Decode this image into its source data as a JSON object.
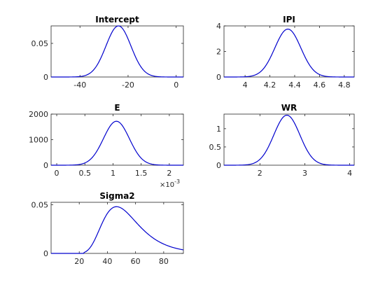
{
  "chart_data": [
    {
      "type": "line",
      "title": "Intercept",
      "xlim": [
        -52,
        3
      ],
      "ylim": [
        0,
        0.076
      ],
      "xticks": [
        -40,
        -20,
        0
      ],
      "yticks": [
        0,
        0.05
      ],
      "xtick_labels": [
        "-40",
        "-20",
        "0"
      ],
      "ytick_labels": [
        "0",
        "0.05"
      ],
      "series": [
        {
          "color": "#0000CD",
          "distribution": "normal",
          "mean": -24.0,
          "std": 5.2,
          "peak": 0.076
        }
      ]
    },
    {
      "type": "line",
      "title": "IPI",
      "xlim": [
        3.83,
        4.88
      ],
      "ylim": [
        0,
        4
      ],
      "xticks": [
        4,
        4.2,
        4.4,
        4.6,
        4.8
      ],
      "yticks": [
        0,
        2,
        4
      ],
      "xtick_labels": [
        "4",
        "4.2",
        "4.4",
        "4.6",
        "4.8"
      ],
      "ytick_labels": [
        "0",
        "2",
        "4"
      ],
      "series": [
        {
          "color": "#0000CD",
          "distribution": "normal",
          "mean": 4.345,
          "std": 0.105,
          "peak": 3.75
        }
      ]
    },
    {
      "type": "line",
      "title": "E",
      "xlim": [
        -0.0001,
        0.00225
      ],
      "ylim": [
        0,
        2000
      ],
      "xticks": [
        0,
        0.0005,
        0.001,
        0.0015,
        0.002
      ],
      "yticks": [
        0,
        1000,
        2000
      ],
      "xtick_labels": [
        "0",
        "0.5",
        "1",
        "1.5",
        "2"
      ],
      "ytick_labels": [
        "0",
        "1000",
        "2000"
      ],
      "x_exponent_label": "×10",
      "x_exponent_power": "-3",
      "series": [
        {
          "color": "#0000CD",
          "distribution": "normal",
          "mean": 0.00106,
          "std": 0.00023,
          "peak": 1720
        }
      ]
    },
    {
      "type": "line",
      "title": "WR",
      "xlim": [
        1.2,
        4.1
      ],
      "ylim": [
        0,
        1.4
      ],
      "xticks": [
        2,
        3,
        4
      ],
      "yticks": [
        0,
        0.5,
        1
      ],
      "xtick_labels": [
        "2",
        "3",
        "4"
      ],
      "ytick_labels": [
        "0",
        "0.5",
        "1"
      ],
      "series": [
        {
          "color": "#0000CD",
          "distribution": "normal",
          "mean": 2.6,
          "std": 0.29,
          "peak": 1.37
        }
      ]
    },
    {
      "type": "line",
      "title": "Sigma2",
      "xlim": [
        0,
        94
      ],
      "ylim": [
        0,
        0.0525
      ],
      "xticks": [
        20,
        40,
        60,
        80
      ],
      "yticks": [
        0,
        0.05
      ],
      "xtick_labels": [
        "20",
        "40",
        "60",
        "80"
      ],
      "ytick_labels": [
        "0",
        "0.05"
      ],
      "series": [
        {
          "color": "#0000CD",
          "distribution": "inverse-gamma",
          "mode": 46.5,
          "start": 29,
          "peak": 0.048
        }
      ]
    }
  ]
}
